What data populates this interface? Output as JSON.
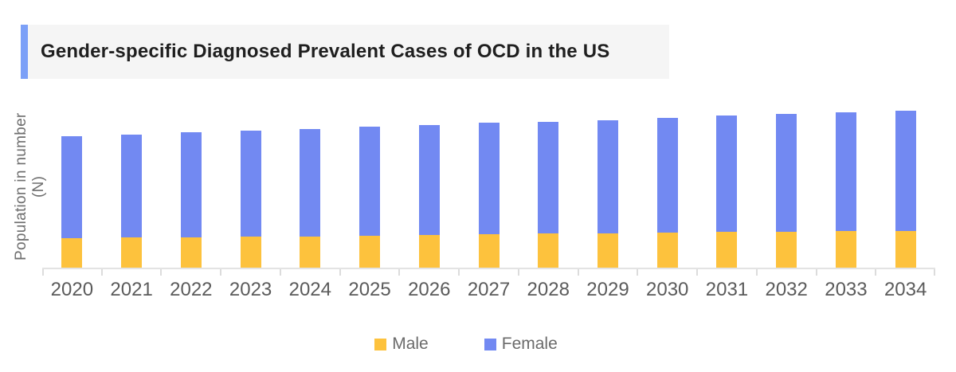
{
  "title": {
    "text": "Gender-specific Diagnosed Prevalent Cases of OCD in the US",
    "accent_color": "#7ca0f7",
    "background_color": "#f5f5f5"
  },
  "y_axis": {
    "label": "Population in number (N)",
    "numeric_ticks_visible": false
  },
  "legend": {
    "items": [
      {
        "label": "Male",
        "color": "#fdc23d"
      },
      {
        "label": "Female",
        "color": "#7289f2"
      }
    ]
  },
  "chart_data": {
    "type": "bar",
    "stacked": true,
    "title": "Gender-specific Diagnosed Prevalent Cases of OCD in the US",
    "xlabel": "",
    "ylabel": "Population in number (N)",
    "categories": [
      "2020",
      "2021",
      "2022",
      "2023",
      "2024",
      "2025",
      "2026",
      "2027",
      "2028",
      "2029",
      "2030",
      "2031",
      "2032",
      "2033",
      "2034"
    ],
    "series": [
      {
        "name": "Male",
        "color": "#fdc23d",
        "values": [
          37,
          38,
          38,
          39,
          39,
          40,
          41,
          42,
          43,
          43,
          44,
          45,
          45,
          46,
          46
        ]
      },
      {
        "name": "Female",
        "color": "#7289f2",
        "values": [
          128,
          129,
          132,
          133,
          135,
          137,
          138,
          140,
          140,
          142,
          144,
          146,
          148,
          149,
          151
        ]
      }
    ],
    "values_unit": "relative bar height (no numeric y-axis shown in chart)",
    "ylim": [
      0,
      206
    ],
    "grid": false,
    "legend_position": "bottom"
  }
}
